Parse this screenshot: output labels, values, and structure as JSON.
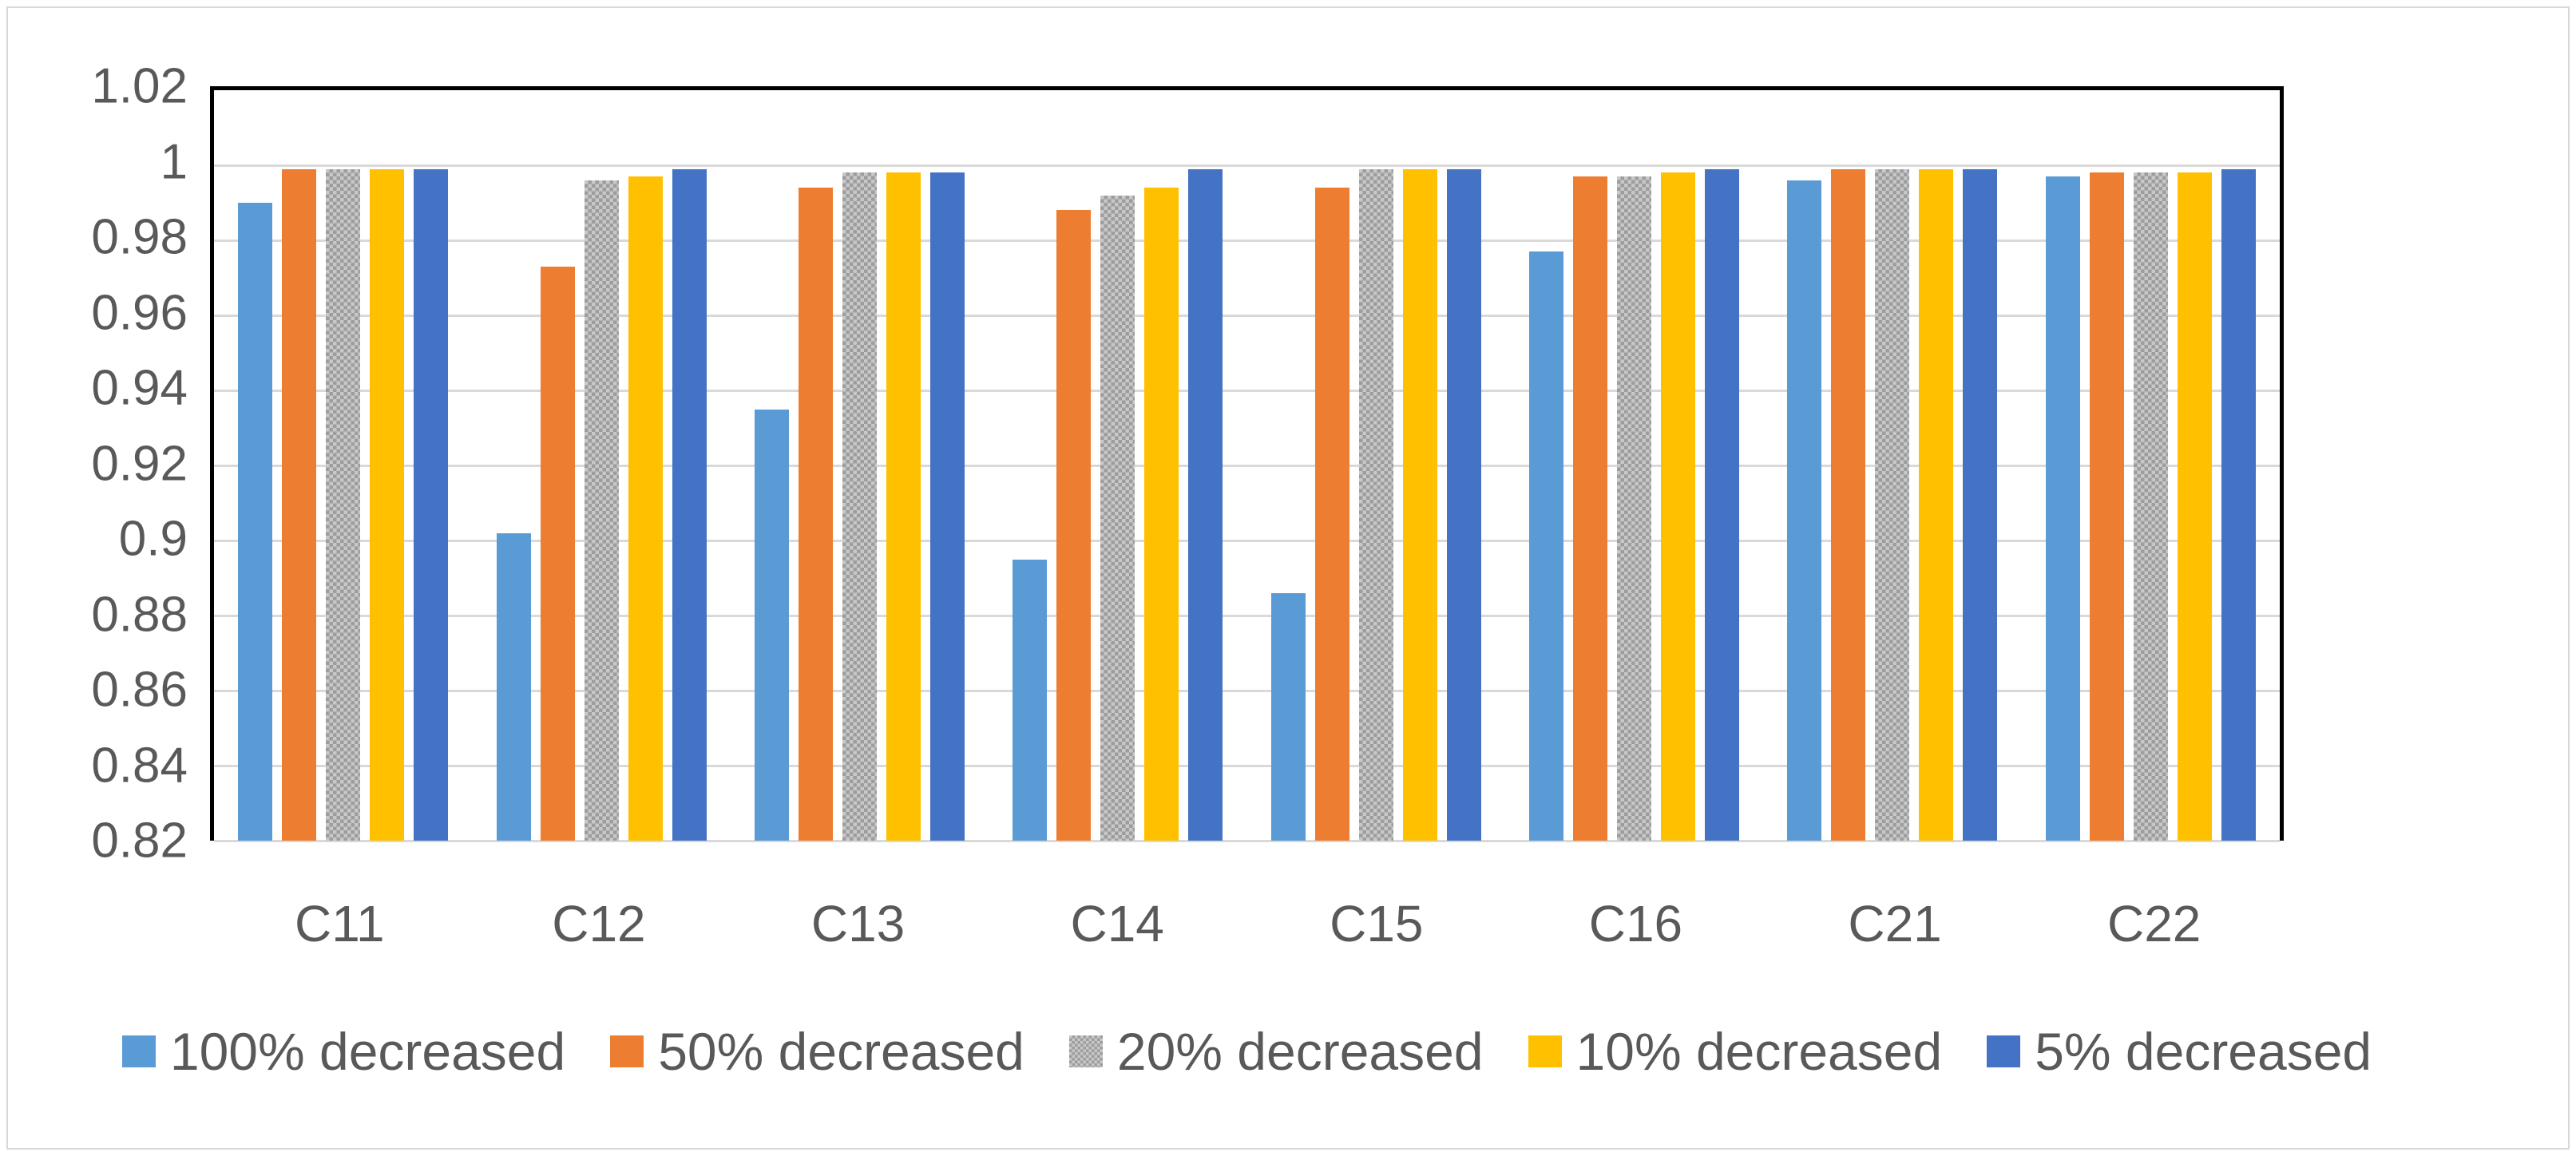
{
  "chart_data": {
    "type": "bar",
    "title": "",
    "xlabel": "",
    "ylabel": "",
    "categories": [
      "C11",
      "C12",
      "C13",
      "C14",
      "C15",
      "C16",
      "C21",
      "C22"
    ],
    "series": [
      {
        "name": "100% decreased",
        "color": "#5B9BD5",
        "pattern": false,
        "values": [
          0.99,
          0.902,
          0.935,
          0.895,
          0.886,
          0.977,
          0.996,
          0.997
        ]
      },
      {
        "name": "50% decreased",
        "color": "#ED7D31",
        "pattern": false,
        "values": [
          0.999,
          0.973,
          0.994,
          0.988,
          0.994,
          0.997,
          0.999,
          0.998
        ]
      },
      {
        "name": "20% decreased",
        "color": "#A6A6A6",
        "pattern": true,
        "values": [
          0.999,
          0.996,
          0.998,
          0.992,
          0.999,
          0.997,
          0.999,
          0.998
        ]
      },
      {
        "name": "10% decreased",
        "color": "#FFC000",
        "pattern": false,
        "values": [
          0.999,
          0.997,
          0.998,
          0.994,
          0.999,
          0.998,
          0.999,
          0.998
        ]
      },
      {
        "name": "5% decreased",
        "color": "#4472C4",
        "pattern": false,
        "values": [
          0.999,
          0.999,
          0.998,
          0.999,
          0.999,
          0.999,
          0.999,
          0.999
        ]
      }
    ],
    "ylim": [
      0.82,
      1.02
    ],
    "yticks": [
      {
        "value": 1.02,
        "label": "1.02"
      },
      {
        "value": 1.0,
        "label": "1"
      },
      {
        "value": 0.98,
        "label": "0.98"
      },
      {
        "value": 0.96,
        "label": "0.96"
      },
      {
        "value": 0.94,
        "label": "0.94"
      },
      {
        "value": 0.92,
        "label": "0.92"
      },
      {
        "value": 0.9,
        "label": "0.9"
      },
      {
        "value": 0.88,
        "label": "0.88"
      },
      {
        "value": 0.86,
        "label": "0.86"
      },
      {
        "value": 0.84,
        "label": "0.84"
      },
      {
        "value": 0.82,
        "label": "0.82"
      }
    ],
    "grid": true,
    "legend_position": "bottom",
    "colors": {
      "axis_frame": "#000000",
      "gridline": "#d9d9d9",
      "text": "#595959",
      "outer_border": "#d9d9d9",
      "background": "#ffffff"
    }
  }
}
